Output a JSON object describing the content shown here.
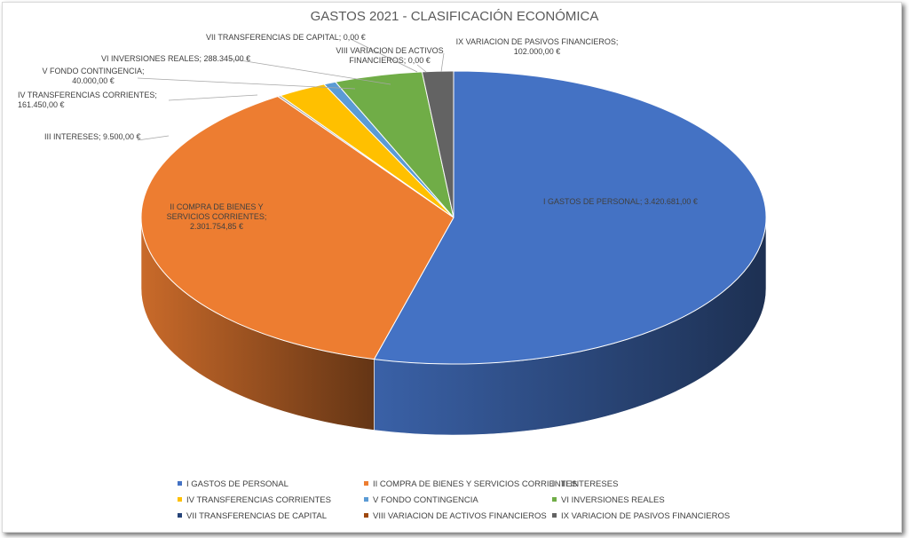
{
  "chart_data": {
    "type": "pie",
    "title": "GASTOS 2021 - CLASIFICACIÓN  ECONÓMICA",
    "series": [
      {
        "name": "I GASTOS DE PERSONAL",
        "value": 3420681.0,
        "label": "I GASTOS DE PERSONAL; 3.420.681,00 €",
        "color": "#4472c4"
      },
      {
        "name": "II COMPRA DE BIENES Y SERVICIOS CORRIENTES",
        "value": 2301754.85,
        "label": "II COMPRA DE BIENES Y SERVICIOS CORRIENTES; 2.301.754,85 €",
        "color": "#ed7d31"
      },
      {
        "name": "III INTERESES",
        "value": 9500.0,
        "label": "III INTERESES; 9.500,00 €",
        "color": "#a5a5a5"
      },
      {
        "name": "IV TRANSFERENCIAS CORRIENTES",
        "value": 161450.0,
        "label": "IV TRANSFERENCIAS CORRIENTES; 161.450,00 €",
        "color": "#ffc000"
      },
      {
        "name": "V FONDO CONTINGENCIA",
        "value": 40000.0,
        "label": "V FONDO CONTINGENCIA; 40.000,00 €",
        "color": "#5b9bd5"
      },
      {
        "name": "VI INVERSIONES REALES",
        "value": 288345.0,
        "label": "VI INVERSIONES REALES; 288.345,00 €",
        "color": "#70ad47"
      },
      {
        "name": "VII TRANSFERENCIAS DE CAPITAL",
        "value": 0,
        "label": "VII TRANSFERENCIAS DE CAPITAL; 0,00 €",
        "color": "#264478"
      },
      {
        "name": "VIII VARIACION DE ACTIVOS FINANCIEROS",
        "value": 0,
        "label": "VIII VARIACION DE ACTIVOS FINANCIEROS; 0,00 €",
        "color": "#9e480e"
      },
      {
        "name": "IX VARIACION DE PASIVOS FINANCIEROS",
        "value": 102000.0,
        "label": "IX VARIACION DE PASIVOS FINANCIEROS; 102.000,00 €",
        "color": "#636363"
      }
    ],
    "style": "3d-pie",
    "legend_position": "bottom"
  }
}
